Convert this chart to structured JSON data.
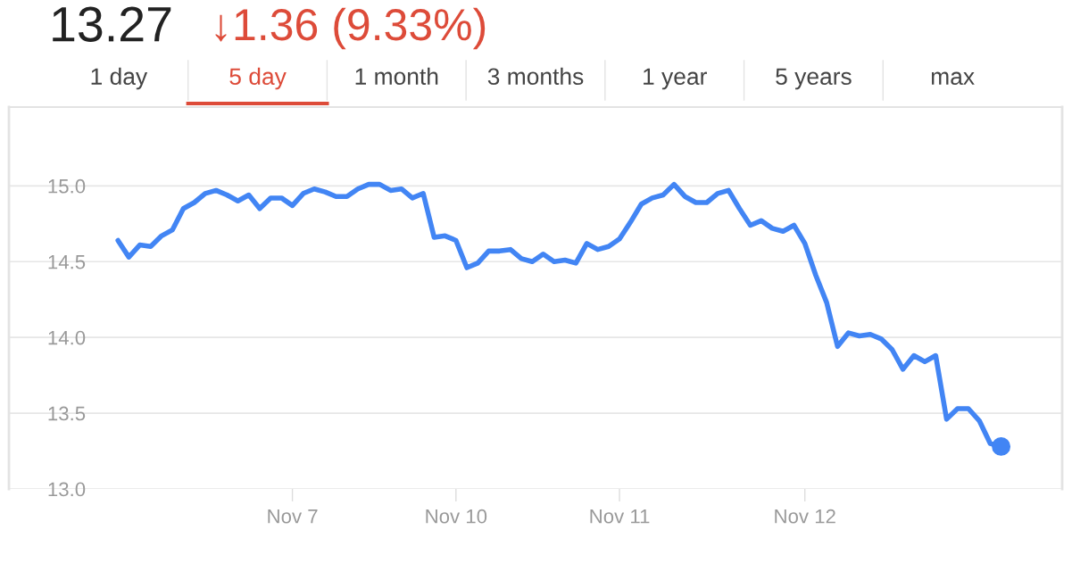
{
  "chart_data": {
    "type": "line",
    "title": "13.27",
    "subtitle": "↓1.36 (9.33%)",
    "annotations": [
      "1 day",
      "5 day",
      "1 month",
      "3 months",
      "1 year",
      "5 years",
      "max"
    ],
    "categories": [
      null,
      null,
      null,
      null,
      null,
      null,
      null,
      null,
      null,
      null,
      null,
      null,
      null,
      null,
      null,
      null,
      "Nov 7",
      null,
      null,
      null,
      null,
      null,
      null,
      null,
      null,
      null,
      null,
      null,
      null,
      null,
      null,
      "Nov 10",
      null,
      null,
      null,
      null,
      null,
      null,
      null,
      null,
      null,
      null,
      null,
      null,
      null,
      null,
      "Nov 11",
      null,
      null,
      null,
      null,
      null,
      null,
      null,
      null,
      null,
      null,
      null,
      null,
      null,
      null,
      null,
      null,
      "Nov 12",
      null,
      null,
      null,
      null,
      null,
      null,
      null,
      null,
      null,
      null,
      null,
      null,
      null,
      null,
      null,
      null,
      null,
      null
    ],
    "series": [
      {
        "color": "#4285f4",
        "values": [
          14.64,
          14.53,
          14.61,
          14.6,
          14.67,
          14.71,
          14.85,
          14.89,
          14.95,
          14.97,
          14.94,
          14.9,
          14.94,
          14.85,
          14.92,
          14.92,
          14.87,
          14.95,
          14.98,
          14.96,
          14.93,
          14.93,
          14.98,
          15.01,
          15.01,
          14.97,
          14.98,
          14.92,
          14.95,
          14.66,
          14.67,
          14.64,
          14.46,
          14.49,
          14.57,
          14.57,
          14.58,
          14.52,
          14.5,
          14.55,
          14.5,
          14.51,
          14.49,
          14.62,
          14.58,
          14.6,
          14.65,
          14.76,
          14.88,
          14.92,
          14.94,
          15.01,
          14.93,
          14.89,
          14.89,
          14.95,
          14.97,
          14.85,
          14.74,
          14.77,
          14.72,
          14.7,
          14.74,
          14.62,
          14.41,
          14.23,
          13.94,
          14.03,
          14.01,
          14.02,
          13.99,
          13.92,
          13.79,
          13.88,
          13.84,
          13.88,
          13.46,
          13.53,
          13.53,
          13.45,
          13.3,
          13.28
        ]
      }
    ],
    "ylim": [
      13.0,
      15.52
    ],
    "yticks": [
      {
        "value": 13.0,
        "label": "13.0"
      },
      {
        "value": 13.5,
        "label": "13.5"
      },
      {
        "value": 14.0,
        "label": "14.0"
      },
      {
        "value": 14.5,
        "label": "14.5"
      },
      {
        "value": 15.0,
        "label": "15.0"
      }
    ],
    "grid": "y"
  }
}
